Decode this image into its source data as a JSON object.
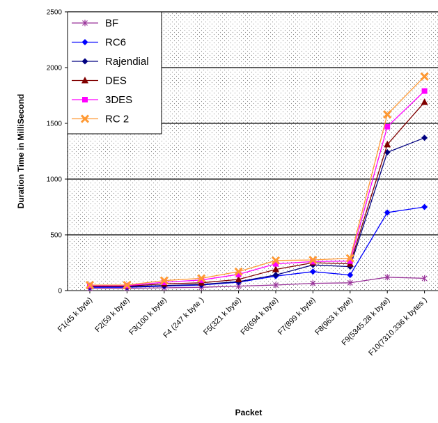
{
  "chart_data": {
    "type": "line",
    "title": "",
    "xlabel": "Packet",
    "ylabel": "Duration Time in MilliSecond",
    "ylim": [
      0,
      2500
    ],
    "yticks": [
      0,
      500,
      1000,
      1500,
      2000,
      2500
    ],
    "grid": true,
    "legend": "top-left",
    "categories": [
      "F1(45 k byte)",
      "F2(59 k byte)",
      "F3(100 k byte)",
      "F4 (247 k byte )",
      "F5(321 k byte)",
      "F6(694 k byte)",
      "F7(899 k byte)",
      "F8(963 k byte)",
      "F9(5345.28 k byte)",
      "F10(7310.336 k bytes )"
    ],
    "series": [
      {
        "name": "BF",
        "color": "#993399",
        "marker": "star",
        "values": [
          20,
          20,
          25,
          30,
          40,
          50,
          65,
          70,
          120,
          110
        ]
      },
      {
        "name": "RC6",
        "color": "#0000ff",
        "marker": "diamond",
        "values": [
          30,
          30,
          40,
          50,
          75,
          130,
          170,
          140,
          700,
          750
        ]
      },
      {
        "name": "Rajendial",
        "color": "#000080",
        "marker": "diamond",
        "values": [
          35,
          35,
          45,
          55,
          80,
          140,
          230,
          215,
          1240,
          1370
        ]
      },
      {
        "name": "DES",
        "color": "#800000",
        "marker": "triangle",
        "values": [
          40,
          40,
          60,
          70,
          100,
          190,
          250,
          240,
          1310,
          1690
        ]
      },
      {
        "name": "3DES",
        "color": "#ff00ff",
        "marker": "square",
        "values": [
          45,
          45,
          75,
          95,
          145,
          240,
          260,
          265,
          1470,
          1790
        ]
      },
      {
        "name": "RC 2",
        "color": "#ff9933",
        "marker": "x",
        "values": [
          50,
          50,
          90,
          110,
          170,
          270,
          275,
          290,
          1580,
          1920
        ]
      }
    ]
  }
}
